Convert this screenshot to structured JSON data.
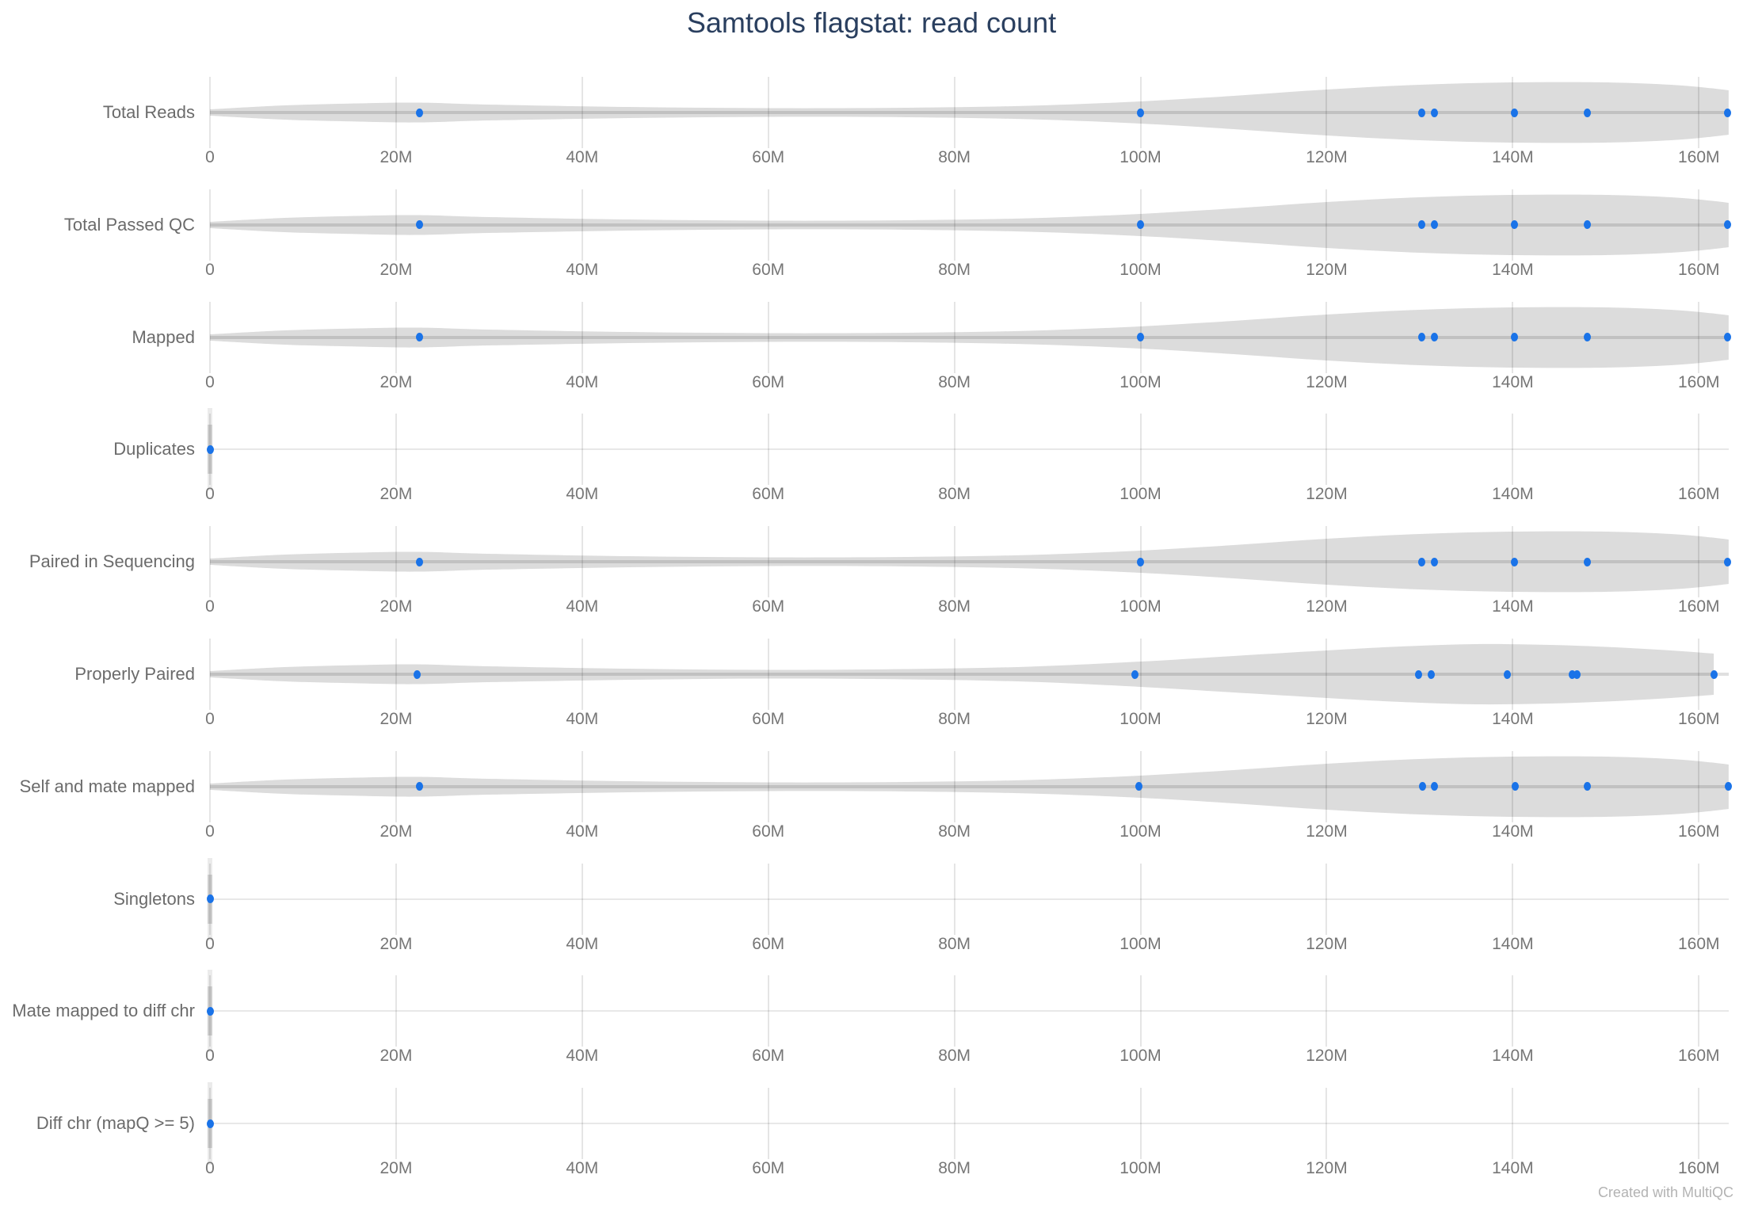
{
  "title": "Samtools flagstat: read count",
  "attribution": "Created with MultiQC",
  "colors": {
    "title": "#2a3f5f",
    "row_label": "#6b6b6b",
    "tick_label": "#767676",
    "violin_fill": "#dcdcdc",
    "dot": "#1a73e8",
    "background": "#ffffff"
  },
  "axis": {
    "max_millions": 165,
    "tick_values": [
      0,
      20,
      40,
      60,
      80,
      100,
      120,
      140,
      160
    ],
    "tick_labels": [
      "0",
      "20M",
      "40M",
      "60M",
      "80M",
      "100M",
      "120M",
      "140M",
      "160M"
    ]
  },
  "chart_data": {
    "type": "violin",
    "title": "Samtools flagstat: read count",
    "x_unit": "reads (millions)",
    "x_range": [
      0,
      165000000
    ],
    "grid": true,
    "categories": [
      "Total Reads",
      "Total Passed QC",
      "Mapped",
      "Duplicates",
      "Paired in Sequencing",
      "Properly Paired",
      "Self and mate mapped",
      "Singletons",
      "Mate mapped to diff chr",
      "Diff chr (mapQ >= 5)"
    ],
    "rows": [
      {
        "label": "Total Reads",
        "profile": "main",
        "points_millions": [
          22.5,
          100,
          130.2,
          131.6,
          140.2,
          148,
          163.1
        ]
      },
      {
        "label": "Total Passed QC",
        "profile": "main",
        "points_millions": [
          22.5,
          100,
          130.2,
          131.6,
          140.2,
          148,
          163.1
        ]
      },
      {
        "label": "Mapped",
        "profile": "main",
        "points_millions": [
          22.5,
          100,
          130.2,
          131.6,
          140.2,
          148,
          163.1
        ]
      },
      {
        "label": "Duplicates",
        "profile": "zero",
        "points_millions": [
          0
        ]
      },
      {
        "label": "Paired in Sequencing",
        "profile": "main",
        "points_millions": [
          22.5,
          100,
          130.2,
          131.6,
          140.2,
          148,
          163.1
        ]
      },
      {
        "label": "Properly Paired",
        "profile": "pp",
        "points_millions": [
          22.3,
          99.4,
          129.9,
          131.2,
          139.4,
          146.4,
          146.9,
          161.6
        ]
      },
      {
        "label": "Self and mate mapped",
        "profile": "main",
        "points_millions": [
          22.5,
          99.8,
          130.3,
          131.6,
          140.3,
          148,
          163.2
        ]
      },
      {
        "label": "Singletons",
        "profile": "zero",
        "points_millions": [
          0
        ]
      },
      {
        "label": "Mate mapped to diff chr",
        "profile": "zero",
        "points_millions": [
          0
        ]
      },
      {
        "label": "Diff chr (mapQ >= 5)",
        "profile": "zero",
        "points_millions": [
          0
        ]
      }
    ],
    "violin_profiles": {
      "main": [
        [
          0,
          4
        ],
        [
          8,
          9
        ],
        [
          16,
          11.5
        ],
        [
          22.5,
          12.5
        ],
        [
          30,
          10
        ],
        [
          45,
          7
        ],
        [
          60,
          5.5
        ],
        [
          75,
          6
        ],
        [
          88,
          8.5
        ],
        [
          100,
          14
        ],
        [
          110,
          21
        ],
        [
          120,
          29
        ],
        [
          130,
          35
        ],
        [
          140,
          38
        ],
        [
          150,
          38
        ],
        [
          157,
          35
        ],
        [
          161,
          31
        ],
        [
          163.2,
          28
        ]
      ],
      "pp": [
        [
          0,
          4
        ],
        [
          8,
          9
        ],
        [
          16,
          11.5
        ],
        [
          22.3,
          12.5
        ],
        [
          30,
          10
        ],
        [
          45,
          7
        ],
        [
          60,
          5.5
        ],
        [
          75,
          6.5
        ],
        [
          88,
          9.5
        ],
        [
          100,
          16
        ],
        [
          110,
          23
        ],
        [
          120,
          30
        ],
        [
          128,
          35
        ],
        [
          136,
          38
        ],
        [
          144,
          37
        ],
        [
          151,
          34
        ],
        [
          157,
          30
        ],
        [
          161.6,
          26
        ]
      ]
    },
    "legend": null
  },
  "layout_values": {
    "row_count": 10
  }
}
